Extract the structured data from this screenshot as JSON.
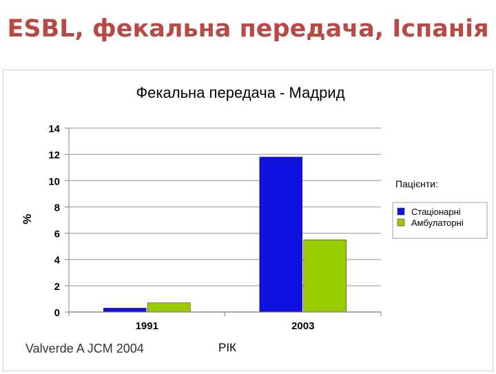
{
  "slide": {
    "title": "ESBL, фекальна передача, Іспанія",
    "source": "Valverde A JCM 2004"
  },
  "chart_data": {
    "type": "bar",
    "title": "Фекальна передача - Мадрид",
    "xlabel": "РІК",
    "ylabel": "%",
    "categories": [
      "1991",
      "2003"
    ],
    "ylim": [
      0,
      14
    ],
    "yticks": [
      0,
      2,
      4,
      6,
      8,
      10,
      12,
      14
    ],
    "grid": true,
    "legend_title": "Пацієнти:",
    "legend_position": "right",
    "series": [
      {
        "name": "Стаціонарні",
        "values": [
          0.3,
          11.8
        ],
        "color": "#1010e0"
      },
      {
        "name": "Амбулаторні",
        "values": [
          0.7,
          5.5
        ],
        "color": "#99cc00"
      }
    ]
  }
}
